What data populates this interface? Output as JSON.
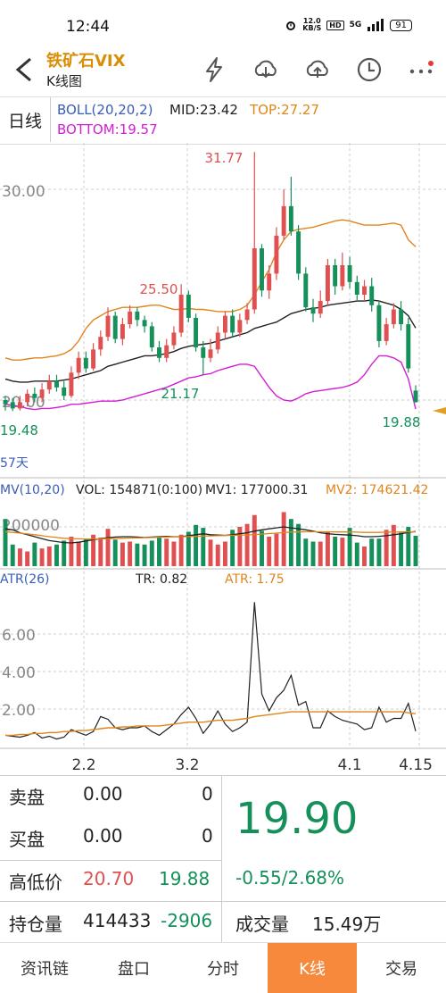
{
  "status": {
    "time": "12:44",
    "net_speed": "12.0",
    "net_unit": "KB/S",
    "hd": "HD",
    "signal": "5G",
    "battery": "91"
  },
  "nav": {
    "title": "铁矿石VIX",
    "subtitle": "K线图"
  },
  "icons": [
    "back-arrow-icon",
    "lightning-icon",
    "cloud-download-icon",
    "cloud-upload-icon",
    "clock-icon",
    "more-icon"
  ],
  "info": {
    "period": "日线",
    "indicator": "BOLL(20,20,2)",
    "mid": "MID:23.42",
    "top": "TOP:27.27",
    "bottom": "BOTTOM:19.57"
  },
  "colors": {
    "up": "#e05050",
    "down": "#16905a",
    "mid": "#222222",
    "top": "#e0851a",
    "bottom": "#d41dd4",
    "blue": "#3a5cb8",
    "accent": "#f6893c",
    "title": "#d98e06"
  },
  "price_labels": {
    "axis_30": "30.00",
    "axis_20": "20.00",
    "high_mark": "31.77",
    "mark_2550": "25.50",
    "mark_2117": "21.17",
    "low_mark": "19.48",
    "last_mark": "19.88",
    "days": "57天"
  },
  "volume_labels": {
    "mv": "MV(10,20)",
    "vol": "VOL: 154871(0:100)",
    "mv1": "MV1: 177000.31",
    "mv2": "MV2: 174621.42",
    "axis": "200000"
  },
  "atr_labels": {
    "atr_name": "ATR(26)",
    "tr": "TR: 0.82",
    "atr": "ATR: 1.75",
    "axis_6": "6.00",
    "axis_4": "4.00",
    "axis_2": "2.00"
  },
  "date_labels": [
    "2.2",
    "3.2",
    "4.1",
    "4.15"
  ],
  "chart_data": {
    "type": "candlestick",
    "price_range": [
      18.0,
      33.0
    ],
    "candles": [
      {
        "o": 20.0,
        "c": 19.8,
        "h": 20.2,
        "l": 19.5,
        "dir": "down"
      },
      {
        "o": 19.9,
        "c": 19.6,
        "h": 20.1,
        "l": 19.48,
        "dir": "down"
      },
      {
        "o": 19.6,
        "c": 19.9,
        "h": 20.2,
        "l": 19.5,
        "dir": "up"
      },
      {
        "o": 19.9,
        "c": 20.3,
        "h": 20.5,
        "l": 19.7,
        "dir": "up"
      },
      {
        "o": 20.3,
        "c": 20.1,
        "h": 20.6,
        "l": 19.9,
        "dir": "down"
      },
      {
        "o": 20.1,
        "c": 20.5,
        "h": 20.8,
        "l": 19.9,
        "dir": "up"
      },
      {
        "o": 20.5,
        "c": 20.9,
        "h": 21.2,
        "l": 20.3,
        "dir": "up"
      },
      {
        "o": 20.9,
        "c": 20.6,
        "h": 21.2,
        "l": 20.4,
        "dir": "down"
      },
      {
        "o": 20.6,
        "c": 20.2,
        "h": 20.9,
        "l": 20.0,
        "dir": "down"
      },
      {
        "o": 20.2,
        "c": 21.3,
        "h": 21.6,
        "l": 20.1,
        "dir": "up"
      },
      {
        "o": 21.3,
        "c": 22.0,
        "h": 22.3,
        "l": 21.0,
        "dir": "up"
      },
      {
        "o": 22.0,
        "c": 21.5,
        "h": 22.3,
        "l": 21.3,
        "dir": "down"
      },
      {
        "o": 21.5,
        "c": 22.4,
        "h": 22.7,
        "l": 21.4,
        "dir": "up"
      },
      {
        "o": 22.4,
        "c": 23.0,
        "h": 23.3,
        "l": 22.1,
        "dir": "up"
      },
      {
        "o": 23.0,
        "c": 24.0,
        "h": 24.4,
        "l": 22.8,
        "dir": "up"
      },
      {
        "o": 24.0,
        "c": 22.9,
        "h": 24.2,
        "l": 22.7,
        "dir": "down"
      },
      {
        "o": 22.9,
        "c": 23.6,
        "h": 23.9,
        "l": 22.6,
        "dir": "up"
      },
      {
        "o": 23.6,
        "c": 24.2,
        "h": 24.5,
        "l": 23.4,
        "dir": "up"
      },
      {
        "o": 24.2,
        "c": 23.8,
        "h": 24.4,
        "l": 23.5,
        "dir": "down"
      },
      {
        "o": 23.8,
        "c": 23.5,
        "h": 24.0,
        "l": 23.2,
        "dir": "down"
      },
      {
        "o": 23.5,
        "c": 22.5,
        "h": 23.7,
        "l": 22.3,
        "dir": "down"
      },
      {
        "o": 22.5,
        "c": 22.0,
        "h": 22.8,
        "l": 21.8,
        "dir": "down"
      },
      {
        "o": 22.0,
        "c": 22.6,
        "h": 22.9,
        "l": 21.8,
        "dir": "up"
      },
      {
        "o": 22.6,
        "c": 23.2,
        "h": 23.5,
        "l": 22.4,
        "dir": "up"
      },
      {
        "o": 23.2,
        "c": 25.0,
        "h": 25.5,
        "l": 23.0,
        "dir": "up"
      },
      {
        "o": 25.0,
        "c": 23.9,
        "h": 25.2,
        "l": 23.7,
        "dir": "down"
      },
      {
        "o": 23.9,
        "c": 22.5,
        "h": 24.1,
        "l": 22.3,
        "dir": "down"
      },
      {
        "o": 22.5,
        "c": 22.0,
        "h": 22.8,
        "l": 21.17,
        "dir": "down"
      },
      {
        "o": 22.0,
        "c": 22.4,
        "h": 22.9,
        "l": 21.8,
        "dir": "up"
      },
      {
        "o": 22.4,
        "c": 23.2,
        "h": 23.5,
        "l": 22.2,
        "dir": "up"
      },
      {
        "o": 23.2,
        "c": 24.0,
        "h": 24.2,
        "l": 22.9,
        "dir": "up"
      },
      {
        "o": 24.0,
        "c": 23.2,
        "h": 24.3,
        "l": 23.0,
        "dir": "down"
      },
      {
        "o": 23.2,
        "c": 23.8,
        "h": 24.1,
        "l": 23.0,
        "dir": "up"
      },
      {
        "o": 23.8,
        "c": 24.3,
        "h": 24.6,
        "l": 23.6,
        "dir": "up"
      },
      {
        "o": 24.3,
        "c": 27.2,
        "h": 31.77,
        "l": 24.1,
        "dir": "up"
      },
      {
        "o": 27.2,
        "c": 25.2,
        "h": 27.4,
        "l": 24.9,
        "dir": "down"
      },
      {
        "o": 25.2,
        "c": 26.0,
        "h": 26.4,
        "l": 24.8,
        "dir": "up"
      },
      {
        "o": 26.0,
        "c": 27.8,
        "h": 28.2,
        "l": 25.7,
        "dir": "up"
      },
      {
        "o": 27.8,
        "c": 29.2,
        "h": 30.0,
        "l": 27.6,
        "dir": "up"
      },
      {
        "o": 29.2,
        "c": 28.0,
        "h": 30.6,
        "l": 27.8,
        "dir": "down"
      },
      {
        "o": 28.0,
        "c": 26.0,
        "h": 28.3,
        "l": 25.7,
        "dir": "down"
      },
      {
        "o": 26.0,
        "c": 24.4,
        "h": 26.3,
        "l": 24.2,
        "dir": "down"
      },
      {
        "o": 24.4,
        "c": 24.1,
        "h": 24.8,
        "l": 23.7,
        "dir": "down"
      },
      {
        "o": 24.1,
        "c": 24.7,
        "h": 25.2,
        "l": 23.9,
        "dir": "up"
      },
      {
        "o": 24.7,
        "c": 26.4,
        "h": 26.7,
        "l": 24.5,
        "dir": "up"
      },
      {
        "o": 26.4,
        "c": 25.4,
        "h": 26.7,
        "l": 25.0,
        "dir": "down"
      },
      {
        "o": 25.4,
        "c": 26.4,
        "h": 27.0,
        "l": 25.2,
        "dir": "up"
      },
      {
        "o": 26.4,
        "c": 25.6,
        "h": 26.8,
        "l": 25.3,
        "dir": "down"
      },
      {
        "o": 25.6,
        "c": 25.0,
        "h": 25.9,
        "l": 24.7,
        "dir": "down"
      },
      {
        "o": 25.0,
        "c": 25.4,
        "h": 25.7,
        "l": 24.7,
        "dir": "up"
      },
      {
        "o": 25.4,
        "c": 24.5,
        "h": 25.8,
        "l": 24.2,
        "dir": "down"
      },
      {
        "o": 24.5,
        "c": 22.8,
        "h": 24.7,
        "l": 22.5,
        "dir": "down"
      },
      {
        "o": 22.8,
        "c": 23.6,
        "h": 23.9,
        "l": 22.6,
        "dir": "up"
      },
      {
        "o": 23.6,
        "c": 24.3,
        "h": 24.6,
        "l": 23.4,
        "dir": "up"
      },
      {
        "o": 24.3,
        "c": 23.6,
        "h": 24.7,
        "l": 23.3,
        "dir": "down"
      },
      {
        "o": 23.6,
        "c": 21.5,
        "h": 23.9,
        "l": 21.3,
        "dir": "down"
      },
      {
        "o": 20.45,
        "c": 19.9,
        "h": 20.7,
        "l": 19.88,
        "dir": "down"
      }
    ],
    "boll_mid": [
      21.0,
      20.9,
      20.85,
      20.85,
      20.9,
      20.9,
      20.9,
      20.9,
      20.95,
      21.0,
      21.1,
      21.2,
      21.3,
      21.4,
      21.6,
      21.7,
      21.8,
      21.9,
      22.0,
      22.1,
      22.1,
      22.15,
      22.2,
      22.3,
      22.45,
      22.55,
      22.6,
      22.65,
      22.7,
      22.8,
      22.9,
      23.0,
      23.1,
      23.2,
      23.4,
      23.5,
      23.6,
      23.7,
      23.9,
      24.1,
      24.2,
      24.3,
      24.35,
      24.4,
      24.5,
      24.55,
      24.6,
      24.65,
      24.7,
      24.7,
      24.75,
      24.7,
      24.6,
      24.5,
      24.3,
      24.0,
      23.42
    ],
    "boll_top": [
      22.0,
      21.9,
      21.9,
      21.95,
      22.0,
      22.0,
      22.05,
      22.1,
      22.2,
      22.4,
      22.8,
      23.4,
      23.8,
      24.0,
      24.2,
      24.3,
      24.4,
      24.4,
      24.4,
      24.45,
      24.5,
      24.5,
      24.4,
      24.3,
      24.3,
      24.35,
      24.3,
      24.3,
      24.25,
      24.2,
      24.2,
      24.2,
      24.3,
      24.5,
      25.0,
      25.6,
      26.2,
      27.0,
      27.6,
      28.0,
      28.1,
      28.15,
      28.2,
      28.3,
      28.4,
      28.5,
      28.55,
      28.5,
      28.4,
      28.3,
      28.3,
      28.3,
      28.35,
      28.4,
      28.3,
      27.6,
      27.27
    ],
    "boll_bottom": [
      19.8,
      19.75,
      19.7,
      19.6,
      19.55,
      19.6,
      19.6,
      19.65,
      19.7,
      19.8,
      19.8,
      19.85,
      19.9,
      19.95,
      19.95,
      19.95,
      20.0,
      20.1,
      20.2,
      20.3,
      20.4,
      20.5,
      20.6,
      20.75,
      20.9,
      21.05,
      21.1,
      21.2,
      21.25,
      21.4,
      21.5,
      21.6,
      21.7,
      21.7,
      21.6,
      21.1,
      20.6,
      20.2,
      20.0,
      19.95,
      20.1,
      20.3,
      20.4,
      20.45,
      20.5,
      20.55,
      20.6,
      20.7,
      20.85,
      21.2,
      21.7,
      22.1,
      22.1,
      22.0,
      21.8,
      21.0,
      19.57
    ],
    "volume": [
      240000,
      110000,
      90000,
      75000,
      120000,
      90000,
      100000,
      110000,
      130000,
      150000,
      125000,
      140000,
      160000,
      145000,
      190000,
      135000,
      120000,
      125000,
      115000,
      110000,
      130000,
      150000,
      140000,
      125000,
      160000,
      175000,
      210000,
      195000,
      135000,
      110000,
      125000,
      185000,
      200000,
      215000,
      260000,
      180000,
      150000,
      165000,
      275000,
      240000,
      215000,
      140000,
      125000,
      125000,
      175000,
      150000,
      145000,
      195000,
      120000,
      100000,
      140000,
      140000,
      185000,
      210000,
      170000,
      200000,
      154871
    ],
    "mv1": [
      190000,
      185000,
      170000,
      160000,
      150000,
      140000,
      130000,
      125000,
      120000,
      118000,
      122000,
      128000,
      135000,
      140000,
      145000,
      148000,
      150000,
      150000,
      148000,
      146000,
      148000,
      150000,
      152000,
      150000,
      150000,
      155000,
      160000,
      165000,
      160000,
      158000,
      157000,
      160000,
      165000,
      170000,
      178000,
      185000,
      190000,
      195000,
      200000,
      195000,
      190000,
      185000,
      178000,
      170000,
      165000,
      162000,
      160000,
      158000,
      155000,
      150000,
      150000,
      152000,
      155000,
      160000,
      165000,
      172000,
      177000
    ],
    "mv2": [
      175000,
      172000,
      168000,
      164000,
      160000,
      155000,
      150000,
      146000,
      142000,
      140000,
      139000,
      138000,
      138000,
      139000,
      140000,
      141000,
      142000,
      143000,
      144000,
      145000,
      146000,
      147000,
      148000,
      149000,
      150000,
      151000,
      152000,
      153000,
      154000,
      155000,
      156000,
      157000,
      158000,
      159000,
      161000,
      163000,
      166000,
      168000,
      171000,
      173000,
      174000,
      175000,
      175000,
      175000,
      175000,
      174000,
      174000,
      174000,
      173000,
      172000,
      172000,
      172000,
      173000,
      173000,
      174000,
      174500,
      174621
    ],
    "tr": [
      0.6,
      0.55,
      0.5,
      0.6,
      0.75,
      0.45,
      0.55,
      0.4,
      0.5,
      0.9,
      0.75,
      0.6,
      0.8,
      1.6,
      1.45,
      1.0,
      0.9,
      1.0,
      1.0,
      1.1,
      0.8,
      0.6,
      0.9,
      1.2,
      1.7,
      2.1,
      1.5,
      0.7,
      1.2,
      1.9,
      1.2,
      0.8,
      1.0,
      1.3,
      7.7,
      2.8,
      1.9,
      2.6,
      3.0,
      3.8,
      2.2,
      2.4,
      1.0,
      1.0,
      1.9,
      1.6,
      1.4,
      1.3,
      1.2,
      0.9,
      1.0,
      2.1,
      1.3,
      1.5,
      1.5,
      2.3,
      0.82
    ],
    "atr": [
      0.6,
      0.6,
      0.65,
      0.65,
      0.7,
      0.7,
      0.75,
      0.75,
      0.8,
      0.8,
      0.85,
      0.85,
      0.9,
      0.95,
      1.0,
      1.0,
      1.05,
      1.05,
      1.1,
      1.1,
      1.1,
      1.1,
      1.15,
      1.2,
      1.25,
      1.3,
      1.3,
      1.3,
      1.35,
      1.4,
      1.4,
      1.4,
      1.45,
      1.5,
      1.6,
      1.65,
      1.7,
      1.75,
      1.8,
      1.85,
      1.85,
      1.85,
      1.85,
      1.85,
      1.85,
      1.85,
      1.85,
      1.85,
      1.85,
      1.85,
      1.85,
      1.85,
      1.85,
      1.85,
      1.85,
      1.8,
      1.75
    ]
  },
  "quote": {
    "sell_label": "卖盘",
    "sell_price": "0.00",
    "sell_vol": "0",
    "buy_label": "买盘",
    "buy_price": "0.00",
    "buy_vol": "0",
    "hl_label": "高低价",
    "high": "20.70",
    "low": "19.88",
    "oi_label": "持仓量",
    "oi": "414433",
    "oi_change": "-2906",
    "last_price": "19.90",
    "change": "-0.55/2.68%",
    "volume_label": "成交量",
    "volume": "15.49万"
  },
  "tabs": [
    "资讯链",
    "盘口",
    "分时",
    "K线",
    "交易"
  ],
  "active_tab": 3
}
